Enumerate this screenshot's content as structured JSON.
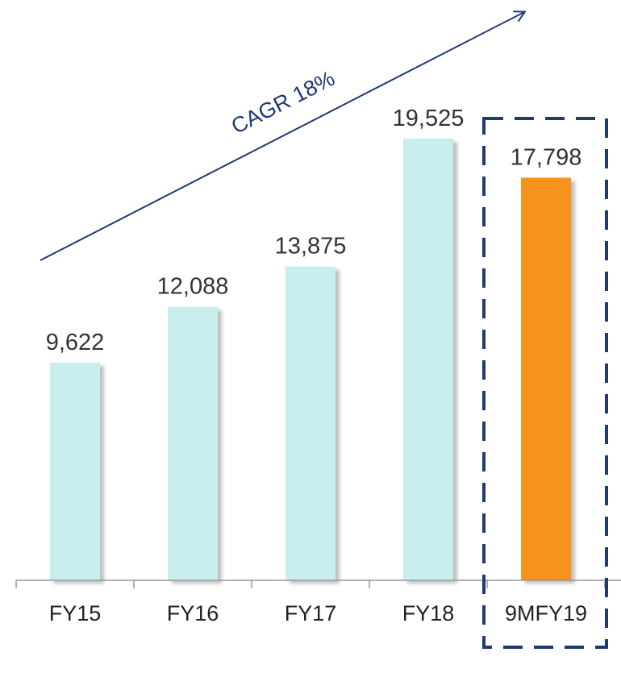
{
  "chart_data": {
    "type": "bar",
    "categories": [
      "FY15",
      "FY16",
      "FY17",
      "FY18",
      "9MFY19"
    ],
    "values": [
      9622,
      12088,
      13875,
      19525,
      17798
    ],
    "value_labels": [
      "9,622",
      "12,088",
      "13,875",
      "19,525",
      "17,798"
    ],
    "title": "",
    "xlabel": "",
    "ylabel": "",
    "ylim": [
      0,
      22000
    ],
    "grid": false,
    "legend": "none",
    "annotation": "CAGR 18%",
    "highlighted_category": "9MFY19"
  },
  "colors": {
    "bar": "#c8efee",
    "highlight_bar": "#f7931e",
    "arrow": "#1f3a73",
    "dashed_box": "#1f3a73",
    "axis": "#999999"
  }
}
